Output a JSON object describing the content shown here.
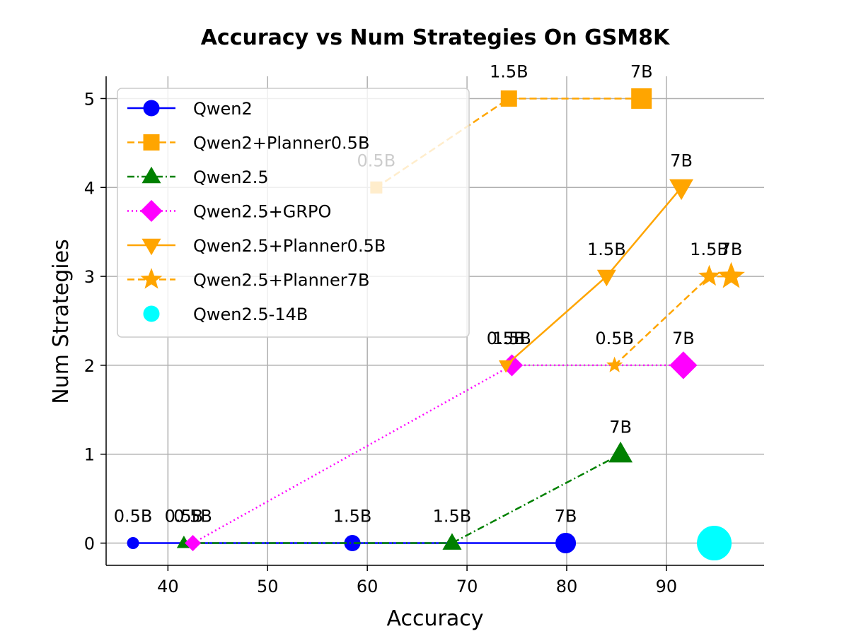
{
  "chart_data": {
    "type": "scatter",
    "title": "Accuracy vs Num Strategies On GSM8K",
    "xlabel": "Accuracy",
    "ylabel": "Num Strategies",
    "xlim": [
      33.8,
      99.8
    ],
    "ylim": [
      -0.25,
      5.25
    ],
    "xticks": [
      40,
      50,
      60,
      70,
      80,
      90
    ],
    "yticks": [
      0,
      1,
      2,
      3,
      4,
      5
    ],
    "grid": true,
    "legend_position": "upper left",
    "series": [
      {
        "name": "Qwen2",
        "color": "#0000ff",
        "marker": "circle",
        "linestyle": "solid",
        "points": [
          {
            "x": 36.5,
            "y": 0,
            "label": "0.5B"
          },
          {
            "x": 58.5,
            "y": 0,
            "label": "1.5B"
          },
          {
            "x": 79.9,
            "y": 0,
            "label": "7B"
          }
        ]
      },
      {
        "name": "Qwen2+Planner0.5B",
        "color": "#ffa500",
        "marker": "square",
        "linestyle": "dashed",
        "points": [
          {
            "x": 60.9,
            "y": 4,
            "label": "0.5B"
          },
          {
            "x": 74.2,
            "y": 5,
            "label": "1.5B"
          },
          {
            "x": 87.5,
            "y": 5,
            "label": "7B"
          }
        ]
      },
      {
        "name": "Qwen2.5",
        "color": "#008000",
        "marker": "triangle-up",
        "linestyle": "dashdot",
        "points": [
          {
            "x": 41.6,
            "y": 0,
            "label": "0.5B"
          },
          {
            "x": 68.5,
            "y": 0,
            "label": "1.5B"
          },
          {
            "x": 85.4,
            "y": 1,
            "label": "7B"
          }
        ]
      },
      {
        "name": "Qwen2.5+GRPO",
        "color": "#ff00ff",
        "marker": "diamond",
        "linestyle": "dotted",
        "points": [
          {
            "x": 42.5,
            "y": 0,
            "label": "0.5B"
          },
          {
            "x": 74.5,
            "y": 2,
            "label": "1.5B"
          },
          {
            "x": 91.7,
            "y": 2,
            "label": "7B"
          }
        ]
      },
      {
        "name": "Qwen2.5+Planner0.5B",
        "color": "#ffa500",
        "marker": "triangle-down",
        "linestyle": "solid",
        "points": [
          {
            "x": 73.9,
            "y": 2,
            "label": "0.5B"
          },
          {
            "x": 84.0,
            "y": 3,
            "label": "1.5B"
          },
          {
            "x": 91.5,
            "y": 4,
            "label": "7B"
          }
        ]
      },
      {
        "name": "Qwen2.5+Planner7B",
        "color": "#ffa500",
        "marker": "star",
        "linestyle": "dashed",
        "points": [
          {
            "x": 84.8,
            "y": 2,
            "label": "0.5B"
          },
          {
            "x": 94.3,
            "y": 3,
            "label": "1.5B"
          },
          {
            "x": 96.5,
            "y": 3,
            "label": "7B"
          }
        ]
      },
      {
        "name": "Qwen2.5-14B",
        "color": "#00ffff",
        "marker": "circle",
        "linestyle": "none",
        "points": [
          {
            "x": 94.8,
            "y": 0,
            "label": ""
          }
        ]
      }
    ]
  }
}
